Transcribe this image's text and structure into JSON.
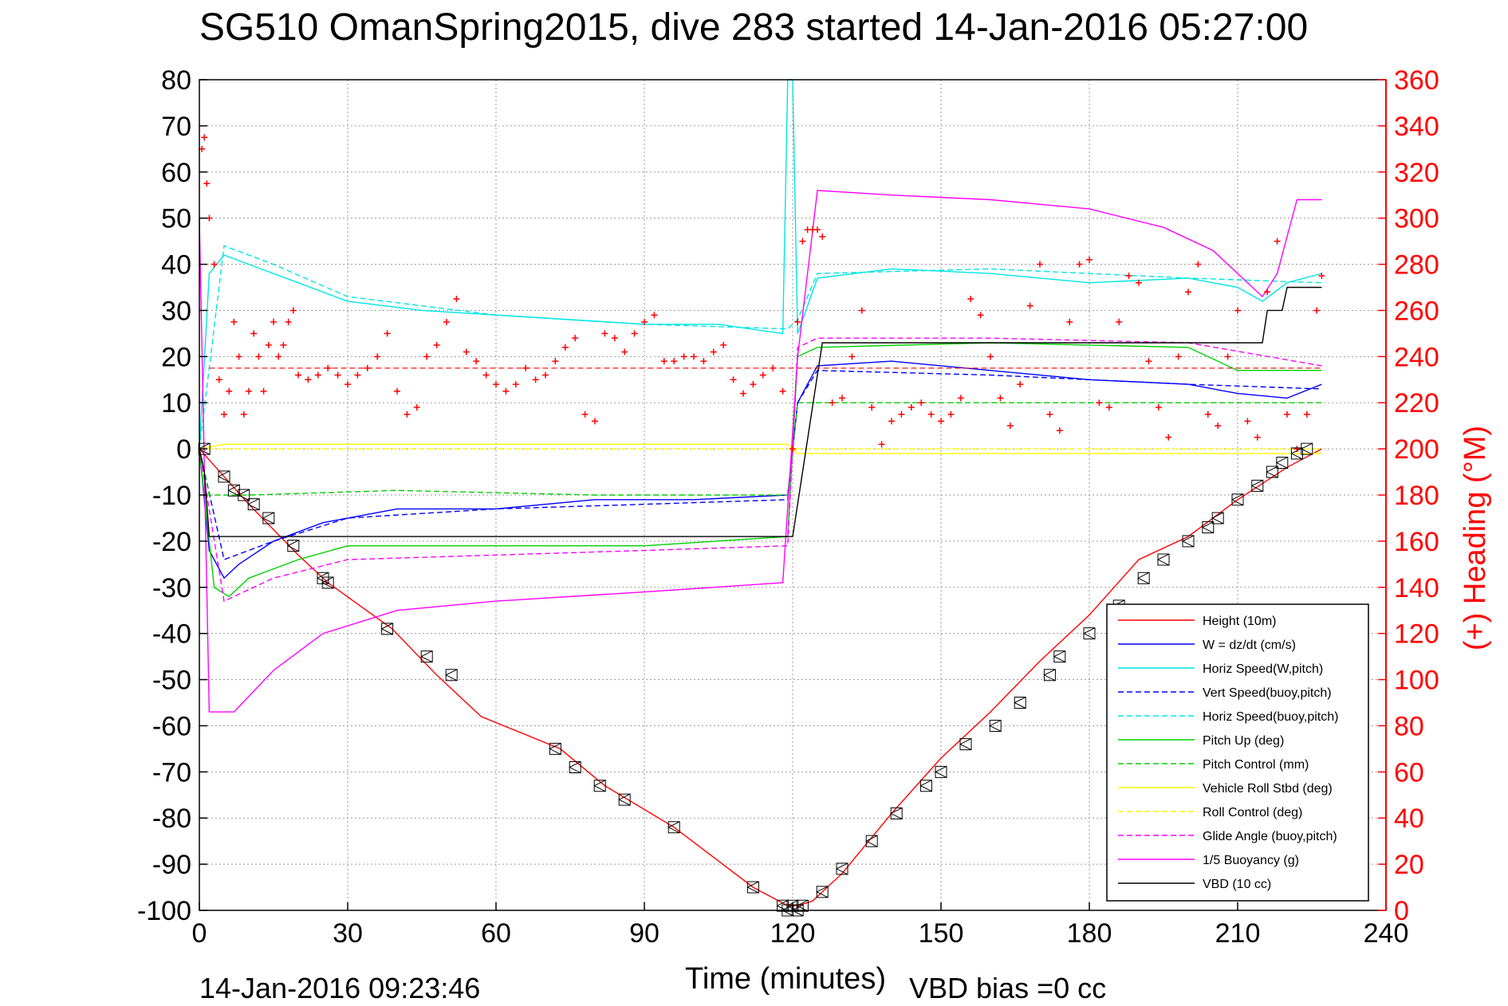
{
  "chart_data": {
    "type": "line",
    "title": "SG510 OmanSpring2015, dive 283 started 14-Jan-2016 05:27:00",
    "xlabel": "Time (minutes)",
    "ylabel_right": "(+) Heading (°M)",
    "xlim": [
      0,
      240
    ],
    "ylim": [
      -100,
      80
    ],
    "ylim_right": [
      0,
      360
    ],
    "x_ticks": [
      0,
      30,
      60,
      90,
      120,
      150,
      180,
      210,
      240
    ],
    "y_ticks": [
      80,
      70,
      60,
      50,
      40,
      30,
      20,
      10,
      0,
      -10,
      -20,
      -30,
      -40,
      -50,
      -60,
      -70,
      -80,
      -90,
      -100
    ],
    "y_right_ticks": [
      360,
      340,
      320,
      300,
      280,
      260,
      240,
      220,
      200,
      180,
      160,
      140,
      120,
      100,
      80,
      60,
      40,
      20,
      0
    ],
    "grid": true,
    "legend_position": "lower-right",
    "footer_left": "14-Jan-2016 09:23:46",
    "footer_right": "VBD bias =0 cc",
    "series": [
      {
        "name": "Height (10m)",
        "color": "#ff0000",
        "style": "solid",
        "x": [
          0,
          5,
          10,
          20,
          26,
          39,
          48,
          57,
          73,
          82,
          96,
          112,
          119,
          121,
          124,
          130,
          140,
          150,
          160,
          170,
          180,
          190,
          200,
          210,
          220,
          227
        ],
        "y": [
          0,
          -6,
          -12,
          -23,
          -29,
          -39,
          -49,
          -58,
          -65,
          -73,
          -82,
          -95,
          -99,
          -99,
          -98,
          -92,
          -79,
          -67,
          -57,
          -46,
          -36,
          -24,
          -19,
          -11,
          -4,
          0
        ]
      },
      {
        "name": "W = dz/dt (cm/s)",
        "color": "#0000ff",
        "style": "solid",
        "x": [
          0,
          2,
          5,
          8,
          15,
          25,
          40,
          60,
          80,
          100,
          119,
          121,
          125,
          140,
          160,
          180,
          200,
          210,
          220,
          227
        ],
        "y": [
          0,
          -22,
          -28,
          -25,
          -20,
          -16,
          -13,
          -13,
          -11,
          -11,
          -10,
          10,
          18,
          19,
          17,
          15,
          14,
          12,
          11,
          14
        ]
      },
      {
        "name": "Horiz Speed(W,pitch)",
        "color": "#00e5e5",
        "style": "solid",
        "x": [
          0,
          2,
          5,
          10,
          20,
          30,
          45,
          60,
          75,
          90,
          105,
          118,
          119,
          120,
          121,
          125,
          140,
          160,
          180,
          200,
          210,
          215,
          220,
          227
        ],
        "y": [
          0,
          38,
          42,
          40,
          36,
          32,
          30,
          29,
          28,
          27,
          27,
          25,
          80,
          80,
          25,
          37,
          39,
          38,
          36,
          37,
          35,
          32,
          36,
          38
        ]
      },
      {
        "name": "Vert Speed(buoy,pitch)",
        "color": "#0000ff",
        "style": "dashed",
        "x": [
          0,
          5,
          15,
          30,
          60,
          90,
          119,
          121,
          125,
          160,
          200,
          227
        ],
        "y": [
          0,
          -24,
          -20,
          -15,
          -13,
          -12,
          -11,
          10,
          17,
          16,
          14,
          13
        ]
      },
      {
        "name": "Horiz Speed(buoy,pitch)",
        "color": "#00e5e5",
        "style": "dashed",
        "x": [
          0,
          5,
          15,
          30,
          60,
          90,
          119,
          121,
          125,
          160,
          200,
          227
        ],
        "y": [
          0,
          44,
          40,
          33,
          29,
          27,
          26,
          28,
          38,
          39,
          37,
          36
        ]
      },
      {
        "name": "Pitch Up (deg)",
        "color": "#00d000",
        "style": "solid",
        "x": [
          0,
          3,
          6,
          10,
          20,
          30,
          60,
          90,
          119,
          121,
          125,
          160,
          200,
          210,
          227
        ],
        "y": [
          0,
          -30,
          -32,
          -28,
          -24,
          -21,
          -21,
          -21,
          -19,
          20,
          22,
          23,
          22,
          17,
          17
        ]
      },
      {
        "name": "Pitch Control (mm)",
        "color": "#00d000",
        "style": "dashed",
        "x": [
          0,
          2,
          10,
          40,
          80,
          119,
          121,
          127,
          200,
          227
        ],
        "y": [
          0,
          -10,
          -10,
          -9,
          -10,
          -10,
          10,
          10,
          10,
          10
        ]
      },
      {
        "name": "Vehicle Roll Stbd (deg)",
        "color": "#ffff00",
        "style": "solid",
        "x": [
          0,
          5,
          30,
          60,
          90,
          119,
          121,
          125,
          160,
          200,
          227
        ],
        "y": [
          0,
          1,
          1,
          1,
          1,
          1,
          -1,
          -1,
          -1,
          -1,
          -1
        ]
      },
      {
        "name": "Roll Control (deg)",
        "color": "#ffff00",
        "style": "dashed",
        "x": [
          0,
          5,
          30,
          60,
          90,
          119,
          121,
          125,
          160,
          200,
          227
        ],
        "y": [
          0,
          0,
          0,
          0,
          0,
          0,
          0,
          0,
          0,
          0,
          0
        ]
      },
      {
        "name": "Glide Angle (buoy,pitch)",
        "color": "#ff00ff",
        "style": "dashed",
        "x": [
          0,
          5,
          15,
          30,
          60,
          90,
          119,
          121,
          125,
          160,
          200,
          227
        ],
        "y": [
          0,
          -33,
          -28,
          -24,
          -23,
          -22,
          -21,
          22,
          24,
          24,
          23,
          18
        ]
      },
      {
        "name": "1/5 Buoyancy (g)",
        "color": "#ff00ff",
        "style": "solid",
        "x": [
          0,
          2,
          7,
          15,
          25,
          40,
          60,
          90,
          118,
          121,
          125,
          140,
          160,
          180,
          195,
          205,
          210,
          215,
          218,
          222,
          227
        ],
        "y": [
          50,
          -57,
          -57,
          -48,
          -40,
          -35,
          -33,
          -31,
          -29,
          20,
          56,
          55,
          54,
          52,
          48,
          43,
          38,
          33,
          38,
          54,
          54
        ]
      },
      {
        "name": "VBD (10 cc)",
        "color": "#000000",
        "style": "solid",
        "x": [
          0,
          1,
          2,
          119,
          120,
          126,
          210,
          215,
          216,
          219,
          220,
          227
        ],
        "y": [
          0,
          -5,
          -19,
          -19,
          -19,
          23,
          23,
          23,
          30,
          30,
          35,
          35
        ]
      }
    ],
    "heading_series": {
      "name": "(+) Heading",
      "color": "#ff0000",
      "marker": "+",
      "x": [
        0.5,
        1,
        1.5,
        2,
        3,
        4,
        5,
        6,
        7,
        8,
        9,
        10,
        11,
        12,
        13,
        14,
        15,
        16,
        17,
        18,
        19,
        20,
        22,
        24,
        26,
        28,
        30,
        32,
        34,
        36,
        38,
        40,
        42,
        44,
        46,
        48,
        50,
        52,
        54,
        56,
        58,
        60,
        62,
        64,
        66,
        68,
        70,
        72,
        74,
        76,
        78,
        80,
        82,
        84,
        86,
        88,
        90,
        92,
        94,
        96,
        98,
        100,
        102,
        104,
        106,
        108,
        110,
        112,
        114,
        116,
        118,
        120,
        121,
        122,
        123,
        124,
        125,
        126,
        128,
        130,
        132,
        134,
        136,
        138,
        140,
        142,
        144,
        146,
        148,
        150,
        152,
        154,
        156,
        158,
        160,
        162,
        164,
        166,
        168,
        170,
        172,
        174,
        176,
        178,
        180,
        182,
        184,
        186,
        188,
        190,
        192,
        194,
        196,
        198,
        200,
        202,
        204,
        206,
        208,
        210,
        212,
        214,
        216,
        218,
        220,
        222,
        224,
        226,
        227
      ],
      "y": [
        330,
        335,
        315,
        300,
        280,
        230,
        215,
        225,
        255,
        240,
        215,
        225,
        250,
        240,
        225,
        245,
        255,
        240,
        245,
        255,
        260,
        232,
        230,
        232,
        235,
        232,
        228,
        232,
        235,
        240,
        250,
        225,
        215,
        218,
        240,
        245,
        255,
        265,
        242,
        238,
        232,
        228,
        225,
        228,
        235,
        230,
        232,
        238,
        244,
        248,
        215,
        212,
        250,
        248,
        242,
        250,
        255,
        258,
        238,
        238,
        240,
        240,
        238,
        242,
        245,
        230,
        224,
        228,
        232,
        235,
        225,
        200,
        255,
        290,
        295,
        295,
        295,
        292,
        220,
        222,
        240,
        260,
        218,
        202,
        212,
        215,
        218,
        220,
        215,
        212,
        215,
        222,
        265,
        258,
        240,
        222,
        210,
        228,
        262,
        280,
        215,
        208,
        255,
        280,
        282,
        220,
        218,
        255,
        275,
        272,
        238,
        218,
        205,
        240,
        268,
        280,
        215,
        210,
        240,
        260,
        212,
        205,
        268,
        290,
        215,
        200,
        215,
        260,
        275
      ]
    },
    "marker_series": {
      "name": "Height markers",
      "color": "#000000",
      "marker": "triangle-box",
      "x": [
        1,
        5,
        7,
        9,
        11,
        14,
        19,
        25,
        26,
        38,
        46,
        51,
        72,
        76,
        81,
        86,
        96,
        112,
        118,
        119,
        120,
        121,
        122,
        126,
        130,
        136,
        141,
        147,
        150,
        155,
        161,
        166,
        172,
        174,
        180,
        186,
        191,
        195,
        200,
        204,
        206,
        210,
        214,
        217,
        219,
        222,
        224
      ],
      "y": [
        0,
        -6,
        -9,
        -10,
        -12,
        -15,
        -21,
        -28,
        -29,
        -39,
        -45,
        -49,
        -65,
        -69,
        -73,
        -76,
        -82,
        -95,
        -99,
        -100,
        -99,
        -100,
        -99,
        -96,
        -91,
        -85,
        -79,
        -73,
        -70,
        -64,
        -60,
        -55,
        -49,
        -45,
        -40,
        -34,
        -28,
        -24,
        -20,
        -17,
        -15,
        -11,
        -8,
        -5,
        -3,
        -1,
        0
      ]
    }
  }
}
